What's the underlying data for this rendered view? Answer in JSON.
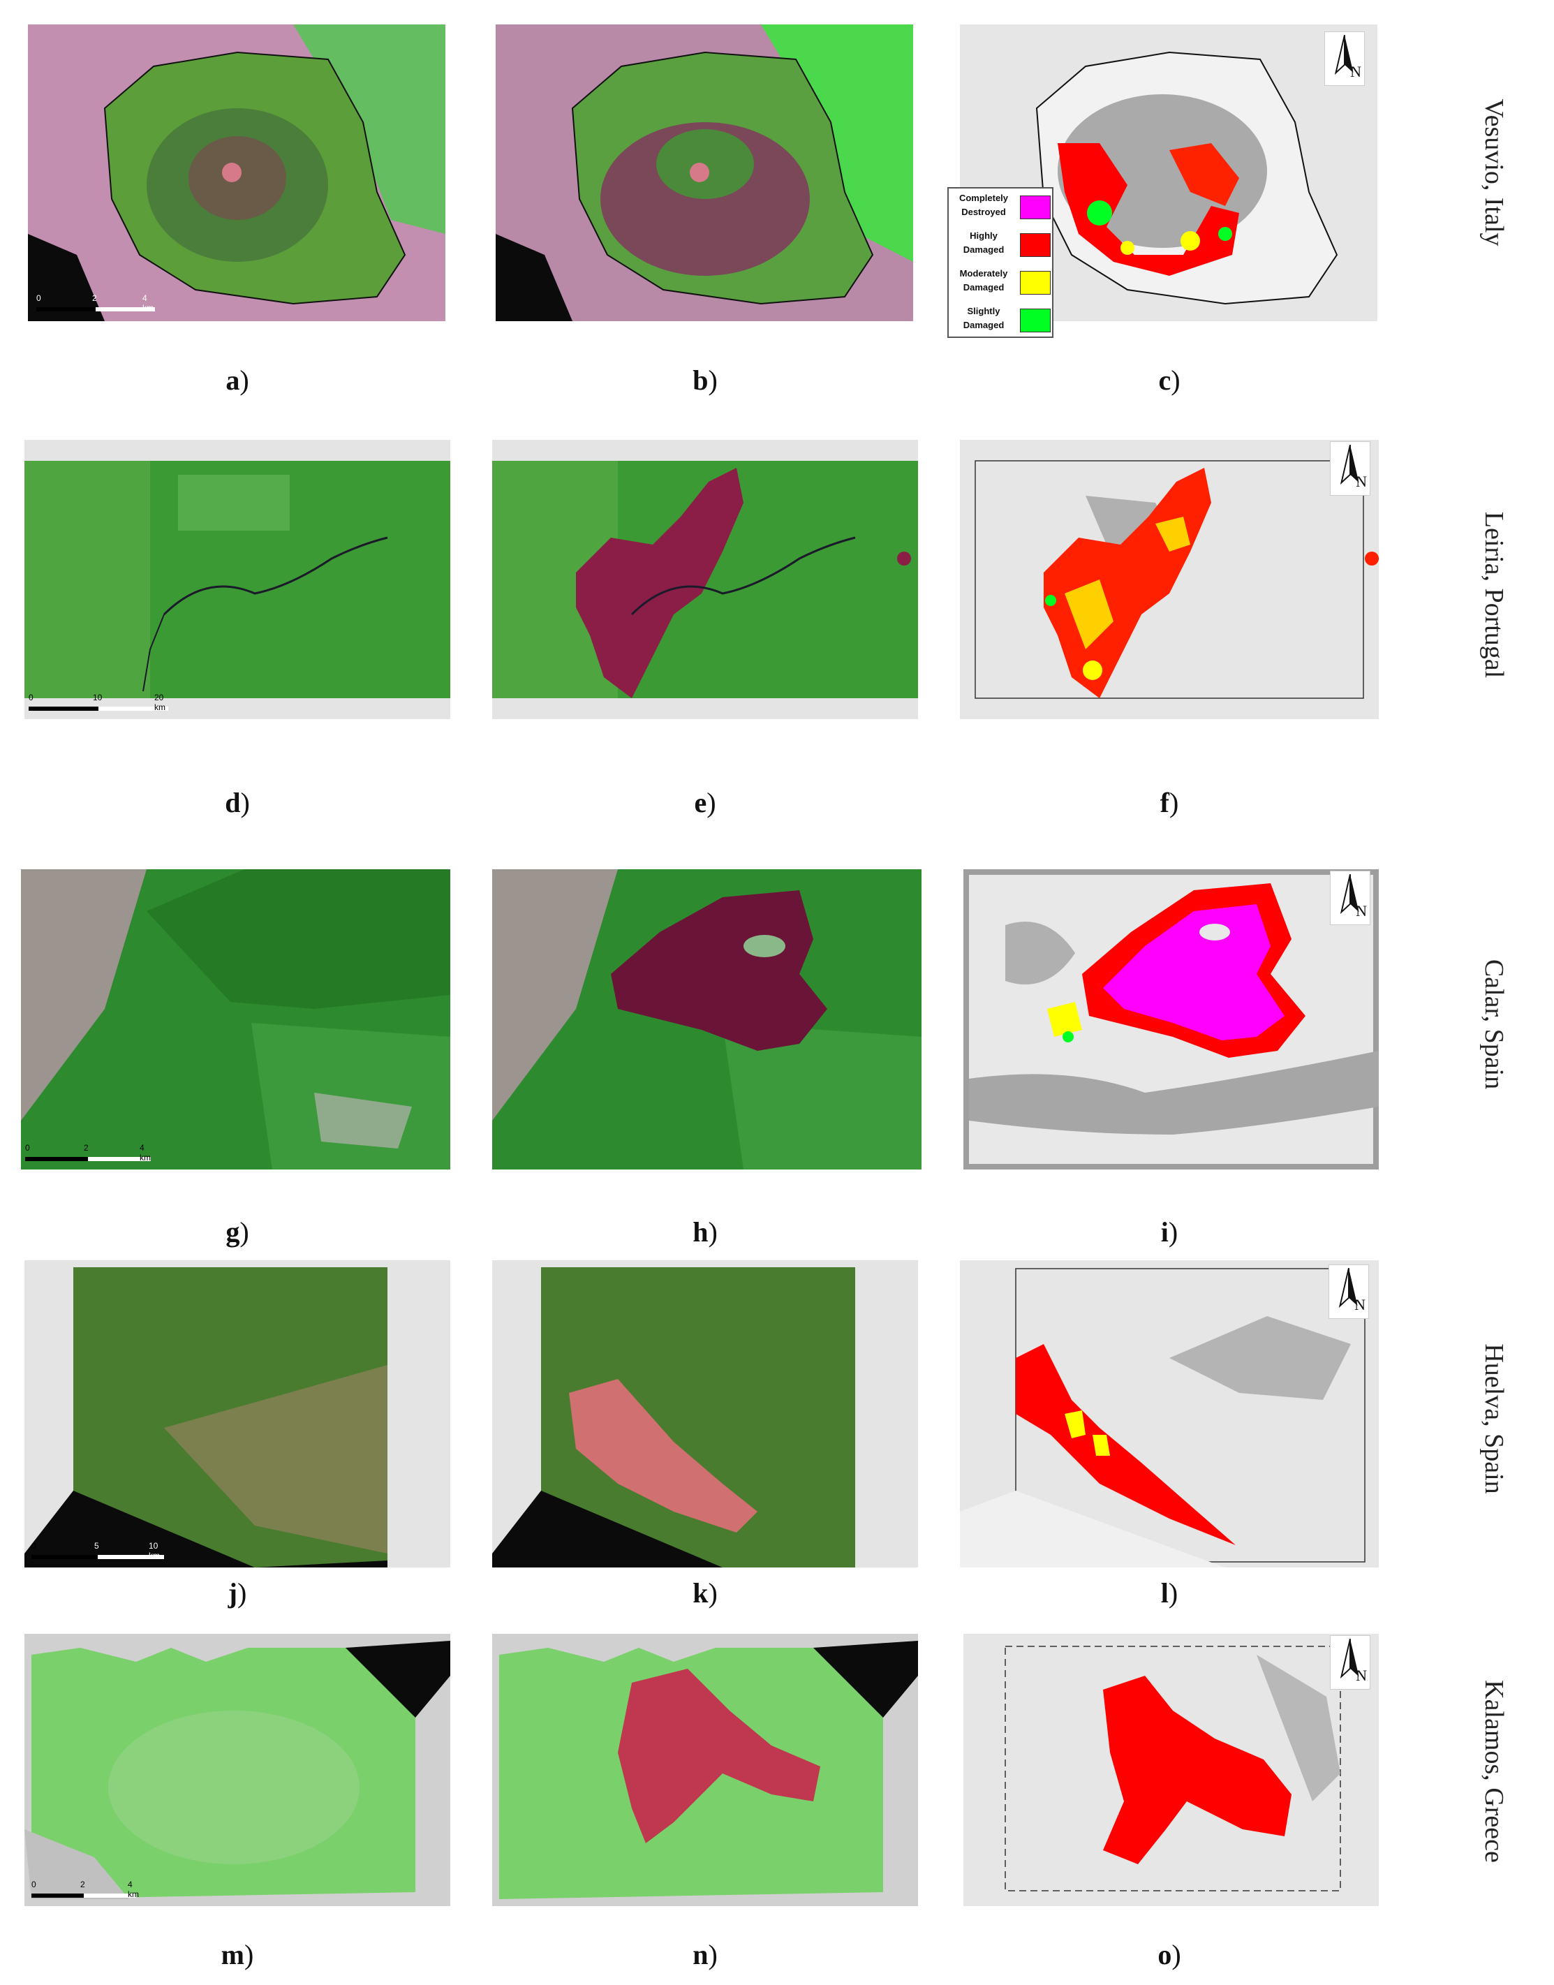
{
  "figure": {
    "rows": [
      {
        "site": "Vesuvio, Italy",
        "labels": [
          "a",
          "b",
          "c"
        ]
      },
      {
        "site": "Leiria, Portugal",
        "labels": [
          "d",
          "e",
          "f"
        ]
      },
      {
        "site": "Calar, Spain",
        "labels": [
          "g",
          "h",
          "i"
        ]
      },
      {
        "site": "Huelva, Spain",
        "labels": [
          "j",
          "k",
          "l"
        ]
      },
      {
        "site": "Kalamos, Greece",
        "labels": [
          "m",
          "n",
          "o"
        ]
      }
    ]
  },
  "legend": {
    "items": [
      {
        "label": "Completely\nDestroyed",
        "color": "#ff00ff"
      },
      {
        "label": "Highly\nDamaged",
        "color": "#ff0000"
      },
      {
        "label": "Moderately\nDamaged",
        "color": "#ffff00"
      },
      {
        "label": "Slightly\nDamaged",
        "color": "#00ff22"
      }
    ]
  },
  "north_arrow": "N",
  "scalebars": {
    "a": [
      "0",
      "2",
      "4 km"
    ],
    "d": [
      "0",
      "10",
      "20 km"
    ],
    "g": [
      "0",
      "2",
      "4 km"
    ],
    "j": [
      "0",
      "5",
      "10 km"
    ],
    "m": [
      "0",
      "2",
      "4 km"
    ]
  },
  "colors": {
    "vegetation": "#2e8b2e",
    "bright_vegetation": "#4cd84c",
    "burned": "#8a1e46",
    "urban": "#c88ab4",
    "sea": "#0b0b0b",
    "map_bg": "#e6e6e6",
    "map_grey": "#a9a9a9"
  }
}
